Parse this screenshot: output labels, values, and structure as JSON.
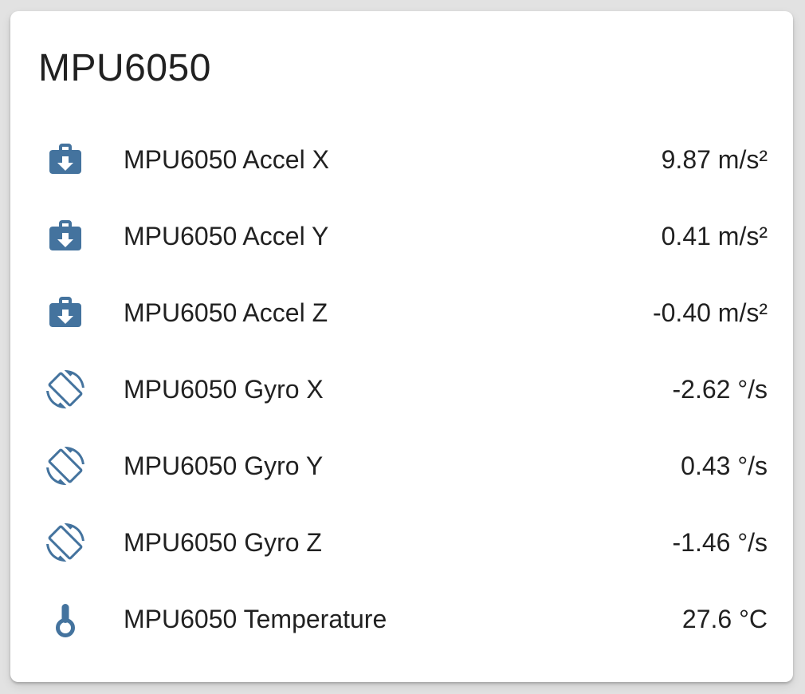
{
  "page": {
    "background": "#e2e2e2"
  },
  "card": {
    "title": "MPU6050",
    "colors": {
      "icon": "#44739e",
      "text": "#212121",
      "card_bg": "#ffffff",
      "page_bg": "#e2e2e2"
    },
    "rows": [
      {
        "icon": "briefcase-download-icon",
        "label": "MPU6050 Accel X",
        "value": "9.87 m/s²"
      },
      {
        "icon": "briefcase-download-icon",
        "label": "MPU6050 Accel Y",
        "value": "0.41 m/s²"
      },
      {
        "icon": "briefcase-download-icon",
        "label": "MPU6050 Accel Z",
        "value": "-0.40 m/s²"
      },
      {
        "icon": "screen-rotation-icon",
        "label": "MPU6050 Gyro X",
        "value": "-2.62 °/s"
      },
      {
        "icon": "screen-rotation-icon",
        "label": "MPU6050 Gyro Y",
        "value": "0.43 °/s"
      },
      {
        "icon": "screen-rotation-icon",
        "label": "MPU6050 Gyro Z",
        "value": "-1.46 °/s"
      },
      {
        "icon": "thermometer-icon",
        "label": "MPU6050 Temperature",
        "value": "27.6 °C"
      }
    ]
  }
}
